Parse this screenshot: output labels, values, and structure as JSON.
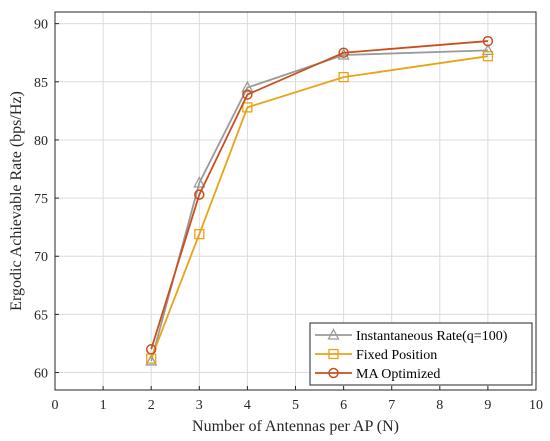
{
  "chart_data": {
    "type": "line",
    "title": "",
    "xlabel": "Number of Antennas per AP (N)",
    "ylabel": "Ergodic Achievable Rate (bps/Hz)",
    "xlim": [
      0,
      10
    ],
    "ylim": [
      58.5,
      91
    ],
    "x_ticks": [
      0,
      1,
      2,
      3,
      4,
      5,
      6,
      7,
      8,
      9,
      10
    ],
    "y_ticks": [
      60,
      65,
      70,
      75,
      80,
      85,
      90
    ],
    "grid": true,
    "legend_position": "bottom-right",
    "series": [
      {
        "name": "Instantaneous Rate(q=100)",
        "marker": "triangle",
        "color": "#9a9a9a",
        "x": [
          2,
          3,
          4,
          6,
          9
        ],
        "y": [
          61.0,
          76.3,
          84.5,
          87.3,
          87.7
        ]
      },
      {
        "name": "Fixed Position",
        "marker": "square",
        "color": "#e8a317",
        "x": [
          2,
          3,
          4,
          6,
          9
        ],
        "y": [
          61.2,
          71.9,
          82.8,
          85.4,
          87.2
        ]
      },
      {
        "name": "MA Optimized",
        "marker": "circle",
        "color": "#c8501f",
        "x": [
          2,
          3,
          4,
          6,
          9
        ],
        "y": [
          62.0,
          75.3,
          83.9,
          87.5,
          88.5
        ]
      }
    ]
  }
}
